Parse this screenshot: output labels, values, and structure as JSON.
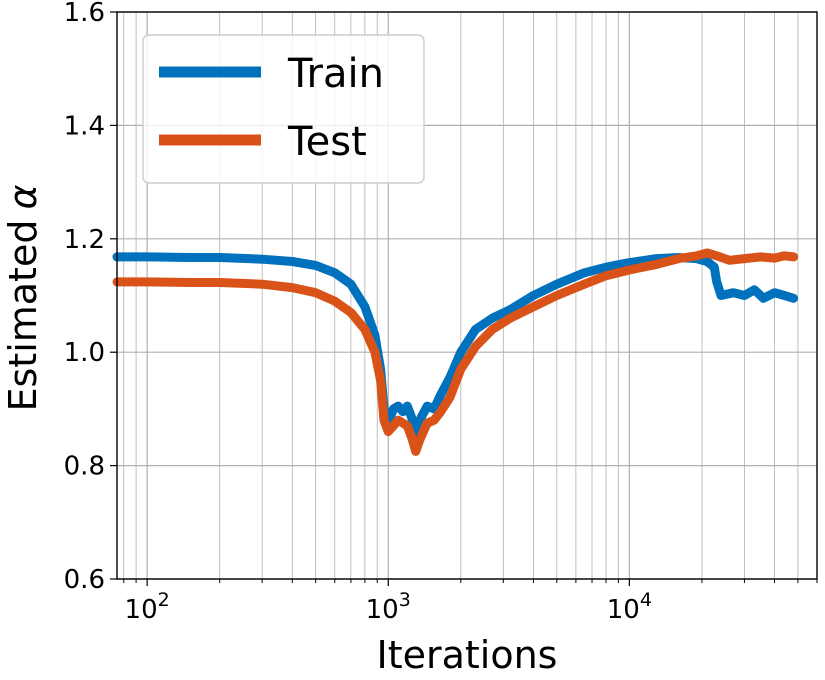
{
  "chart_data": {
    "type": "line",
    "title": "",
    "xlabel": "Iterations",
    "ylabel": "Estimated",
    "ylabel_symbol": "α",
    "xscale": "log",
    "xlim": [
      75,
      60000
    ],
    "ylim": [
      0.6,
      1.6
    ],
    "grid": true,
    "legend_position": "top-left",
    "x_ticks": [
      {
        "value": 100,
        "base": "10",
        "exp": "2"
      },
      {
        "value": 1000,
        "base": "10",
        "exp": "3"
      },
      {
        "value": 10000,
        "base": "10",
        "exp": "4"
      }
    ],
    "y_ticks": [
      {
        "value": 0.6,
        "label": "0.6"
      },
      {
        "value": 0.8,
        "label": "0.8"
      },
      {
        "value": 1.0,
        "label": "1.0"
      },
      {
        "value": 1.2,
        "label": "1.2"
      },
      {
        "value": 1.4,
        "label": "1.4"
      },
      {
        "value": 1.6,
        "label": "1.6"
      }
    ],
    "series": [
      {
        "name": "Train",
        "color": "#0072BD",
        "points": [
          [
            75,
            1.168
          ],
          [
            100,
            1.168
          ],
          [
            150,
            1.167
          ],
          [
            200,
            1.167
          ],
          [
            300,
            1.164
          ],
          [
            400,
            1.16
          ],
          [
            500,
            1.153
          ],
          [
            600,
            1.14
          ],
          [
            700,
            1.12
          ],
          [
            800,
            1.08
          ],
          [
            880,
            1.03
          ],
          [
            930,
            0.97
          ],
          [
            960,
            0.9
          ],
          [
            1000,
            0.875
          ],
          [
            1050,
            0.9
          ],
          [
            1100,
            0.905
          ],
          [
            1150,
            0.895
          ],
          [
            1200,
            0.905
          ],
          [
            1250,
            0.885
          ],
          [
            1300,
            0.855
          ],
          [
            1350,
            0.88
          ],
          [
            1450,
            0.905
          ],
          [
            1550,
            0.9
          ],
          [
            1650,
            0.925
          ],
          [
            1800,
            0.955
          ],
          [
            2000,
            1.0
          ],
          [
            2300,
            1.04
          ],
          [
            2700,
            1.06
          ],
          [
            3200,
            1.075
          ],
          [
            4000,
            1.1
          ],
          [
            5000,
            1.12
          ],
          [
            6500,
            1.14
          ],
          [
            8000,
            1.15
          ],
          [
            10000,
            1.158
          ],
          [
            13000,
            1.165
          ],
          [
            16000,
            1.167
          ],
          [
            19000,
            1.165
          ],
          [
            21000,
            1.16
          ],
          [
            22500,
            1.15
          ],
          [
            23000,
            1.125
          ],
          [
            24000,
            1.1
          ],
          [
            27000,
            1.105
          ],
          [
            30000,
            1.1
          ],
          [
            33000,
            1.11
          ],
          [
            36000,
            1.095
          ],
          [
            40000,
            1.105
          ],
          [
            44000,
            1.1
          ],
          [
            48000,
            1.095
          ]
        ]
      },
      {
        "name": "Test",
        "color": "#D95319",
        "points": [
          [
            75,
            1.124
          ],
          [
            100,
            1.124
          ],
          [
            150,
            1.123
          ],
          [
            200,
            1.123
          ],
          [
            300,
            1.12
          ],
          [
            400,
            1.114
          ],
          [
            500,
            1.105
          ],
          [
            600,
            1.09
          ],
          [
            700,
            1.07
          ],
          [
            800,
            1.04
          ],
          [
            880,
            1.0
          ],
          [
            930,
            0.95
          ],
          [
            960,
            0.88
          ],
          [
            1000,
            0.86
          ],
          [
            1050,
            0.87
          ],
          [
            1100,
            0.88
          ],
          [
            1150,
            0.875
          ],
          [
            1200,
            0.87
          ],
          [
            1250,
            0.85
          ],
          [
            1300,
            0.825
          ],
          [
            1350,
            0.845
          ],
          [
            1450,
            0.875
          ],
          [
            1550,
            0.88
          ],
          [
            1650,
            0.895
          ],
          [
            1800,
            0.92
          ],
          [
            2000,
            0.97
          ],
          [
            2300,
            1.01
          ],
          [
            2700,
            1.04
          ],
          [
            3200,
            1.06
          ],
          [
            4000,
            1.08
          ],
          [
            5000,
            1.1
          ],
          [
            6500,
            1.12
          ],
          [
            8000,
            1.135
          ],
          [
            10000,
            1.145
          ],
          [
            13000,
            1.155
          ],
          [
            16000,
            1.165
          ],
          [
            19000,
            1.17
          ],
          [
            21000,
            1.175
          ],
          [
            23000,
            1.17
          ],
          [
            26000,
            1.162
          ],
          [
            30000,
            1.165
          ],
          [
            35000,
            1.168
          ],
          [
            40000,
            1.166
          ],
          [
            44000,
            1.17
          ],
          [
            48000,
            1.168
          ]
        ]
      }
    ]
  }
}
